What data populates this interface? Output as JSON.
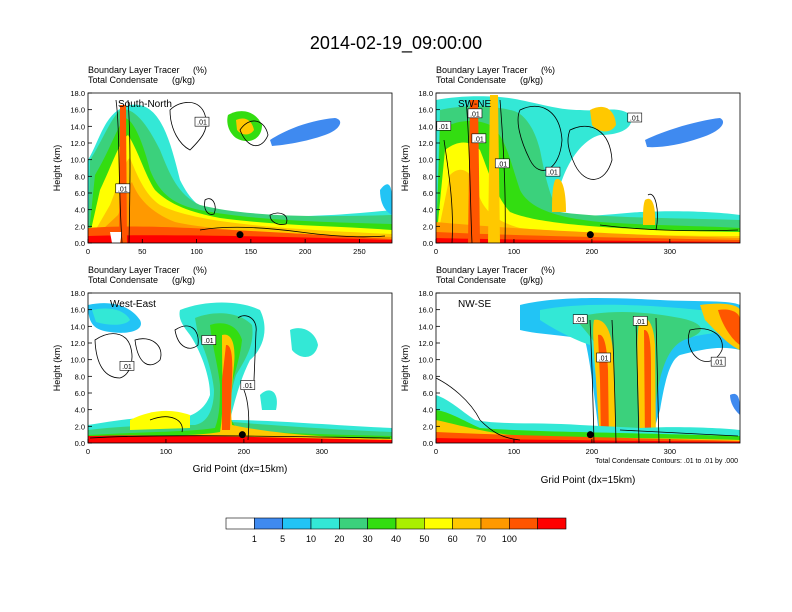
{
  "main_title": "2014-02-19_09:00:00",
  "chart_data": {
    "type": "heatmap",
    "title": "2014-02-19_09:00:00",
    "shaded_variable": "Boundary Layer Tracer",
    "shaded_units": "(%)",
    "contour_variable": "Total Condensate",
    "contour_units": "(g/kg)",
    "contour_info": "Total Condensate Contours: .01 to .01 by .000",
    "contour_label": ".01",
    "ylabel": "Height (km)",
    "xlabel": "Grid Point (dx=15km)",
    "ylim": [
      0,
      18
    ],
    "y_ticks": [
      "0.0",
      "2.0",
      "4.0",
      "6.0",
      "8.0",
      "10.0",
      "12.0",
      "14.0",
      "16.0",
      "18.0"
    ],
    "panels": [
      {
        "label": "South-North",
        "xlim": [
          0,
          280
        ],
        "x_ticks": [
          0,
          50,
          100,
          150,
          200,
          250
        ],
        "marker_x": 140,
        "marker_y": 1.0,
        "contour_labels": [
          [
            32,
            6.5
          ],
          [
            105,
            14.5
          ]
        ],
        "shows_xlabel": false
      },
      {
        "label": "SW-NE",
        "xlim": [
          0,
          390
        ],
        "x_ticks": [
          0,
          100,
          200,
          300
        ],
        "marker_x": 198,
        "marker_y": 1.0,
        "contour_labels": [
          [
            10,
            14
          ],
          [
            50,
            15.5
          ],
          [
            55,
            12.5
          ],
          [
            85,
            9.5
          ],
          [
            150,
            8.5
          ],
          [
            255,
            15
          ]
        ],
        "shows_xlabel": false
      },
      {
        "label": "West-East",
        "xlim": [
          0,
          390
        ],
        "x_ticks": [
          0,
          100,
          200,
          300
        ],
        "marker_x": 198,
        "marker_y": 1.0,
        "contour_labels": [
          [
            50,
            9.2
          ],
          [
            155,
            12.3
          ],
          [
            205,
            6.9
          ]
        ],
        "shows_xlabel": true
      },
      {
        "label": "NW-SE",
        "xlim": [
          0,
          390
        ],
        "x_ticks": [
          0,
          100,
          200,
          300
        ],
        "marker_x": 198,
        "marker_y": 1.0,
        "contour_labels": [
          [
            185,
            14.8
          ],
          [
            215,
            10.2
          ],
          [
            262,
            14.6
          ],
          [
            362,
            9.7
          ]
        ],
        "shows_xlabel": true
      }
    ],
    "colorbar": {
      "levels": [
        "1",
        "5",
        "10",
        "20",
        "30",
        "40",
        "50",
        "60",
        "70",
        "100"
      ],
      "colors": [
        "#ffffff",
        "#3f8af0",
        "#22c4f5",
        "#33e8d6",
        "#3bd17c",
        "#33dd11",
        "#aaf000",
        "#ffff00",
        "#ffc800",
        "#ff9900",
        "#ff5500",
        "#ff0000"
      ]
    }
  }
}
